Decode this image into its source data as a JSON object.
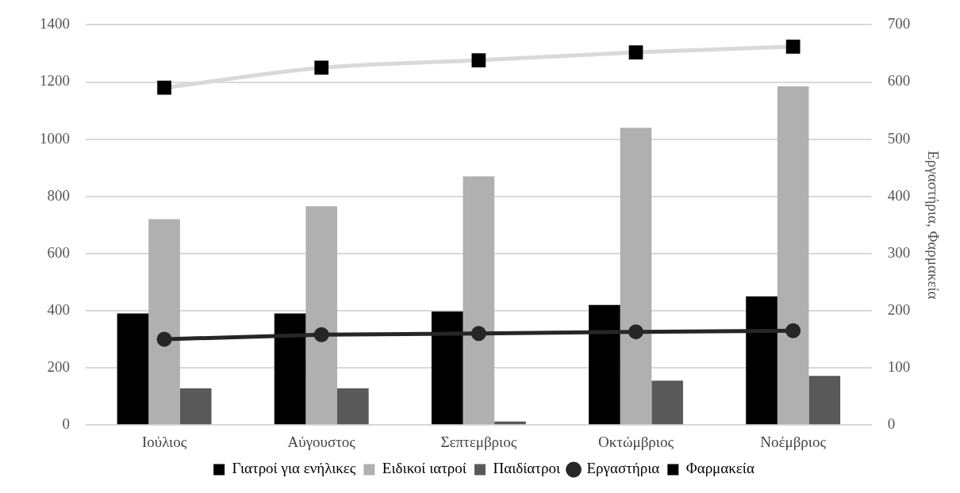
{
  "chart_data": {
    "type": "bar",
    "categories": [
      "Ιούλιος",
      "Αύγουστος",
      "Σεπτεμβριος",
      "Οκτώμβριος",
      "Νοέμβριος"
    ],
    "series": [
      {
        "name": "Γιατροί για ενήλικες",
        "color": "#000000",
        "values": [
          390,
          390,
          397,
          420,
          450
        ]
      },
      {
        "name": "Ειδικοί ιατροί",
        "color": "#b0b0b0",
        "values": [
          720,
          765,
          870,
          1040,
          1185
        ]
      },
      {
        "name": "Παιδίατροι",
        "color": "#595959",
        "values": [
          128,
          128,
          12,
          155,
          172
        ]
      },
      {
        "name": "Εργαστήρια",
        "type": "line",
        "axis": "y2",
        "marker": "circle",
        "color": "#262626",
        "values": [
          150,
          158,
          160,
          163,
          165
        ]
      },
      {
        "name": "Φαρμακεία",
        "type": "line",
        "axis": "y2",
        "marker": "square",
        "color": "#d9d9d9",
        "values": [
          590,
          625,
          638,
          652,
          662
        ]
      }
    ],
    "ylim": [
      0,
      1400
    ],
    "yticks": [
      0,
      200,
      400,
      600,
      800,
      1000,
      1200,
      1400
    ],
    "y2lim": [
      0,
      700
    ],
    "y2ticks": [
      0,
      100,
      200,
      300,
      400,
      500,
      600,
      700
    ],
    "y2label": "Εργαστήρια, Φαρμακεία",
    "grid": "y",
    "legend": "bottom"
  }
}
